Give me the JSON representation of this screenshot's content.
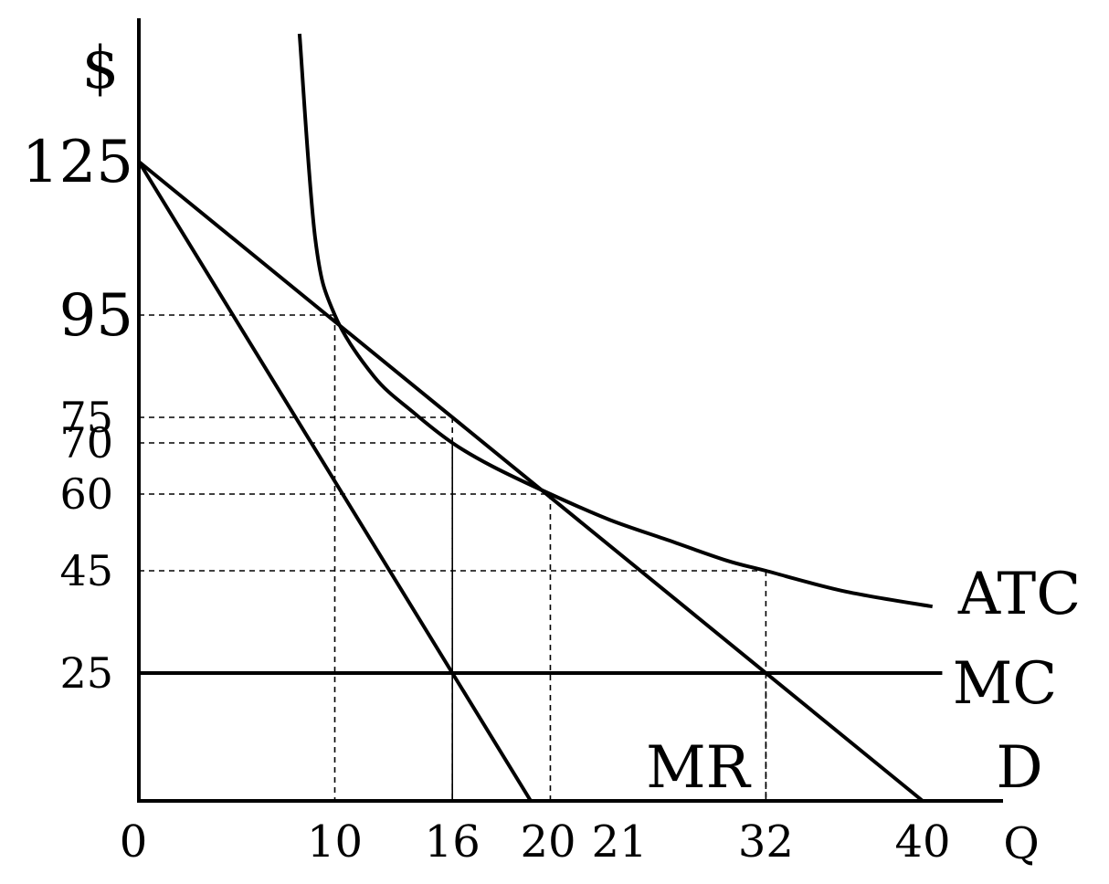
{
  "chart_data": {
    "type": "line",
    "ylabel": "$",
    "xlabel": "Q",
    "xlim": [
      0,
      46
    ],
    "ylim": [
      0,
      150
    ],
    "x_ticks": [
      "0",
      "10",
      "16",
      "20",
      "21",
      "32",
      "40"
    ],
    "y_ticks": [
      "125",
      "95",
      "75",
      "70",
      "60",
      "45",
      "25"
    ],
    "series": [
      {
        "name": "D",
        "x": [
          0,
          40
        ],
        "y": [
          125,
          0
        ]
      },
      {
        "name": "MR",
        "x": [
          0,
          20
        ],
        "y": [
          125,
          0
        ]
      },
      {
        "name": "MC",
        "x": [
          0,
          41
        ],
        "y": [
          25,
          25
        ]
      },
      {
        "name": "ATC",
        "x": [
          8.2,
          9.0,
          10,
          12,
          14,
          16,
          18,
          21,
          24,
          27,
          30,
          32,
          36,
          40.5
        ],
        "y": [
          150,
          110,
          95,
          83,
          76,
          70,
          65.5,
          60,
          55,
          51,
          47,
          45,
          41,
          38
        ]
      }
    ],
    "reference_lines": [
      {
        "x": 10,
        "y": 95
      },
      {
        "x": 16,
        "y": 75
      },
      {
        "x": 16,
        "y": 70
      },
      {
        "x": 21,
        "y": 60
      },
      {
        "x": 32,
        "y": 45
      },
      {
        "x": 16,
        "y": 25
      },
      {
        "x": 32,
        "y": 25
      }
    ],
    "grid": false,
    "legend": "curve labels at right end"
  }
}
